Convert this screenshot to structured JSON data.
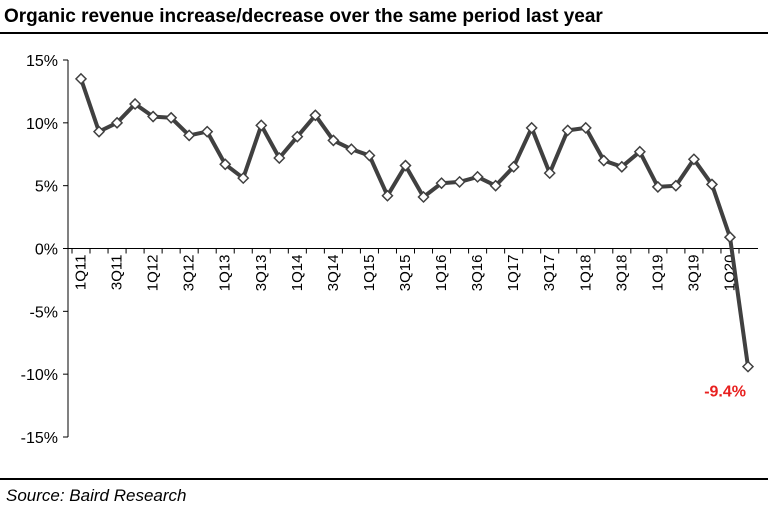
{
  "title": "Organic revenue increase/decrease over the same period last year",
  "source": "Source: Baird Research",
  "colors": {
    "line": "#404040",
    "marker_fill": "#ffffff",
    "marker_stroke": "#404040",
    "callout": "#e8201f"
  },
  "chart_data": {
    "type": "line",
    "title": "Organic revenue increase/decrease over the same period last year",
    "xlabel": "",
    "ylabel": "",
    "ylim": [
      -15,
      15
    ],
    "yticks": [
      15,
      10,
      5,
      0,
      -5,
      -10,
      -15
    ],
    "ytick_labels": [
      "15%",
      "10%",
      "5%",
      "0%",
      "-5%",
      "-10%",
      "-15%"
    ],
    "grid": false,
    "x": [
      "1Q11",
      "2Q11",
      "3Q11",
      "4Q11",
      "1Q12",
      "2Q12",
      "3Q12",
      "4Q12",
      "1Q13",
      "2Q13",
      "3Q13",
      "4Q13",
      "1Q14",
      "2Q14",
      "3Q14",
      "4Q14",
      "1Q15",
      "2Q15",
      "3Q15",
      "4Q15",
      "1Q16",
      "2Q16",
      "3Q16",
      "4Q16",
      "1Q17",
      "2Q17",
      "3Q17",
      "4Q17",
      "1Q18",
      "2Q18",
      "3Q18",
      "4Q18",
      "1Q19",
      "2Q19",
      "3Q19",
      "4Q19",
      "1Q20",
      "2Q20"
    ],
    "x_tick_labels": [
      "1Q11",
      "",
      "3Q11",
      "",
      "1Q12",
      "",
      "3Q12",
      "",
      "1Q13",
      "",
      "3Q13",
      "",
      "1Q14",
      "",
      "3Q14",
      "",
      "1Q15",
      "",
      "3Q15",
      "",
      "1Q16",
      "",
      "3Q16",
      "",
      "1Q17",
      "",
      "3Q17",
      "",
      "1Q18",
      "",
      "3Q18",
      "",
      "1Q19",
      "",
      "3Q19",
      "",
      "1Q20",
      ""
    ],
    "series": [
      {
        "values": [
          13.5,
          9.3,
          10.0,
          11.5,
          10.5,
          10.4,
          9.0,
          9.3,
          6.7,
          5.6,
          9.8,
          7.2,
          8.9,
          10.6,
          8.6,
          7.9,
          7.4,
          4.2,
          6.6,
          4.1,
          5.2,
          5.3,
          5.7,
          5.0,
          6.5,
          9.6,
          6.0,
          9.4,
          9.6,
          7.0,
          6.5,
          7.7,
          4.9,
          5.0,
          7.1,
          5.1,
          0.9,
          -9.4
        ]
      }
    ],
    "annotations": [
      {
        "x": "2Q20",
        "text": "-9.4%"
      }
    ]
  }
}
